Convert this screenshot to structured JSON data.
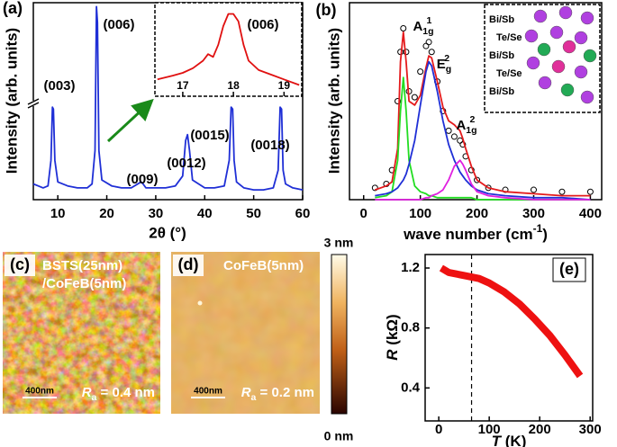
{
  "chart_data": [
    {
      "type": "line",
      "panel_label": "(a)",
      "x_label": "2θ (°)",
      "y_label": "Intensity (arb. units)",
      "xlim": [
        5,
        60
      ],
      "xticks": [
        10,
        20,
        30,
        40,
        50,
        60
      ],
      "ylim": [
        0,
        100
      ],
      "x": [
        5,
        6,
        7,
        8,
        8.6,
        8.9,
        9.1,
        9.4,
        10,
        12,
        14,
        16,
        17,
        17.6,
        17.9,
        18.1,
        18.4,
        19,
        21,
        23,
        25,
        27,
        27.4,
        28,
        30,
        32,
        34,
        35.5,
        36.1,
        36.5,
        36.9,
        37.5,
        40,
        42,
        44,
        45,
        45.4,
        45.7,
        46,
        46.5,
        48,
        50,
        52,
        54,
        55,
        55.4,
        55.7,
        56,
        56.5,
        58,
        60
      ],
      "series": [
        {
          "color": "#1f2fd6",
          "values": [
            8,
            7,
            6,
            7,
            20,
            47,
            46,
            20,
            9,
            7,
            6,
            6,
            8,
            25,
            98,
            90,
            25,
            10,
            7,
            6,
            6,
            9,
            8,
            6,
            6,
            6,
            7,
            12,
            30,
            33,
            25,
            10,
            6,
            6,
            7,
            20,
            47,
            46,
            20,
            9,
            6,
            5,
            5,
            6,
            15,
            47,
            46,
            15,
            8,
            6,
            5
          ]
        }
      ],
      "annotations": [
        "(003)",
        "(006)",
        "(009)",
        "(0012)",
        "(0015)",
        "(0018)"
      ]
    },
    {
      "type": "line",
      "annotations": [
        "(006)"
      ],
      "xlim": [
        16.45,
        19.35
      ],
      "xticks": [
        17,
        18,
        19
      ],
      "ylim": [
        0,
        100
      ],
      "x": [
        16.5,
        16.8,
        17.0,
        17.2,
        17.4,
        17.5,
        17.6,
        17.7,
        17.8,
        17.9,
        18.0,
        18.1,
        18.2,
        18.3,
        18.5,
        18.8,
        19.0,
        19.3
      ],
      "series": [
        {
          "color": "#e01010",
          "values": [
            18,
            22,
            25,
            30,
            38,
            45,
            42,
            55,
            75,
            88,
            88,
            80,
            55,
            38,
            28,
            22,
            18,
            12
          ]
        }
      ]
    },
    {
      "type": "line",
      "panel_label": "(b)",
      "x_label": [
        {
          "text": "wave number (cm",
          "sup": "-1"
        },
        {
          "text": ")"
        }
      ],
      "y_label": "Intensity (arb. units)",
      "xlim": [
        -25,
        420
      ],
      "xticks": [
        0,
        100,
        200,
        300,
        400
      ],
      "ylim": [
        0,
        100
      ],
      "x": [
        20,
        40,
        50,
        60,
        65,
        70,
        75,
        80,
        90,
        100,
        110,
        115,
        120,
        130,
        140,
        150,
        160,
        170,
        175,
        180,
        190,
        200,
        220,
        250,
        300,
        350,
        400
      ],
      "series": [
        {
          "color": "#000000",
          "marker": "open-circle",
          "values": [
            6,
            8,
            15,
            50,
            75,
            87,
            75,
            55,
            52,
            65,
            78,
            80,
            75,
            60,
            45,
            35,
            32,
            30,
            28,
            22,
            15,
            10,
            6,
            5,
            5,
            4,
            4
          ]
        },
        {
          "color": "#e41a1c",
          "values": [
            5,
            7,
            9,
            26,
            70,
            85,
            70,
            50,
            48,
            53,
            67,
            73,
            72,
            60,
            47,
            40,
            38,
            35,
            31,
            26,
            17,
            10,
            6,
            4,
            3,
            2,
            2
          ]
        },
        {
          "color": "#22dd22",
          "values": [
            1,
            2,
            4,
            20,
            45,
            62,
            45,
            20,
            7,
            4,
            3,
            2,
            2,
            1,
            1,
            1,
            1,
            1,
            1,
            1,
            1,
            0,
            0,
            0,
            0,
            0,
            0
          ]
        },
        {
          "color": "#1f2fd6",
          "values": [
            2,
            3,
            4,
            6,
            8,
            10,
            13,
            18,
            30,
            48,
            65,
            70,
            68,
            55,
            40,
            28,
            20,
            14,
            12,
            10,
            7,
            5,
            3,
            2,
            1,
            1,
            0
          ]
        },
        {
          "color": "#e020e0",
          "values": [
            0,
            0,
            0,
            0,
            0,
            0,
            0,
            0,
            0,
            0,
            1,
            1,
            2,
            3,
            5,
            10,
            17,
            20,
            18,
            15,
            8,
            4,
            2,
            1,
            0,
            0,
            0
          ]
        }
      ],
      "annotations": [
        [
          {
            "text": "A",
            "sub": "1g",
            "sup": "1"
          }
        ],
        [
          {
            "text": "E",
            "sub": "g",
            "sup": "2"
          }
        ],
        [
          {
            "text": "A",
            "sub": "1g",
            "sup": "2"
          }
        ]
      ],
      "inset_labels": [
        "Bi/Sb",
        "Te/Se",
        "Bi/Sb",
        "Te/Se",
        "Bi/Sb"
      ]
    },
    {
      "type": "image",
      "panel_label": "(c)",
      "sample": [
        "BSTS(25nm)",
        "/CoFeB(5nm)"
      ],
      "scale_bar": "400nm",
      "roughness": [
        {
          "text": "R",
          "italic": true,
          "sub": "a"
        },
        {
          "text": " = 0.4 nm"
        }
      ]
    },
    {
      "type": "image",
      "panel_label": "(d)",
      "sample": [
        "CoFeB(5nm)"
      ],
      "scale_bar": "400nm",
      "roughness": [
        {
          "text": "R",
          "italic": true,
          "sub": "a"
        },
        {
          "text": " = 0.2 nm"
        }
      ],
      "colorbar": [
        "3 nm",
        "0 nm"
      ]
    },
    {
      "type": "line",
      "panel_label": "(e)",
      "x_label": [
        {
          "text": "T",
          "italic": true
        },
        {
          "text": " (K)"
        }
      ],
      "y_label": [
        {
          "text": "R",
          "italic": true
        },
        {
          "text": " (kΩ)"
        }
      ],
      "xlim": [
        -27,
        305
      ],
      "xticks": [
        0,
        100,
        200,
        300
      ],
      "ylim": [
        0.18,
        1.29
      ],
      "yticks": [
        0.4,
        0.8,
        1.2
      ],
      "vline": 65,
      "x": [
        5,
        20,
        50,
        80,
        100,
        130,
        160,
        190,
        220,
        250,
        280
      ],
      "series": [
        {
          "color": "#ee1111",
          "values": [
            1.2,
            1.17,
            1.15,
            1.13,
            1.1,
            1.04,
            0.96,
            0.86,
            0.75,
            0.62,
            0.48
          ]
        }
      ]
    }
  ]
}
